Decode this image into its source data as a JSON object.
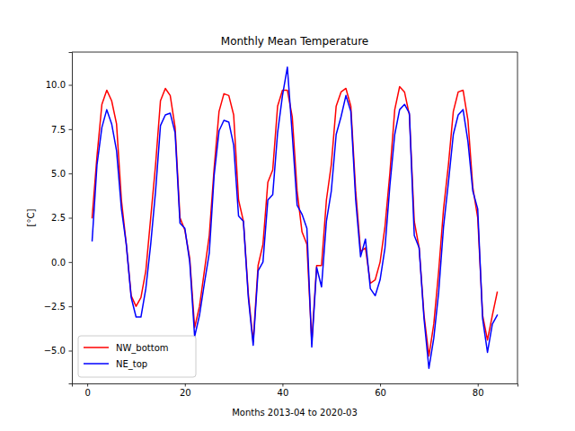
{
  "chart_data": {
    "type": "line",
    "title": "Monthly Mean Temperature",
    "x_label": "Months 2013-04 to 2020-03",
    "y_label": "[°C]",
    "x": [
      1,
      2,
      3,
      4,
      5,
      6,
      7,
      8,
      9,
      10,
      11,
      12,
      13,
      14,
      15,
      16,
      17,
      18,
      19,
      20,
      21,
      22,
      23,
      24,
      25,
      26,
      27,
      28,
      29,
      30,
      31,
      32,
      33,
      34,
      35,
      36,
      37,
      38,
      39,
      40,
      41,
      42,
      43,
      44,
      45,
      46,
      47,
      48,
      49,
      50,
      51,
      52,
      53,
      54,
      55,
      56,
      57,
      58,
      59,
      60,
      61,
      62,
      63,
      64,
      65,
      66,
      67,
      68,
      69,
      70,
      71,
      72,
      73,
      74,
      75,
      76,
      77,
      78,
      79,
      80,
      81,
      82,
      83,
      84
    ],
    "series": [
      {
        "name": "NW_bottom",
        "color": "#ff0000",
        "values": [
          2.5,
          6.0,
          8.9,
          9.7,
          9.1,
          7.8,
          3.5,
          1.0,
          -1.9,
          -2.5,
          -2.0,
          -0.5,
          2.5,
          5.5,
          9.1,
          9.8,
          9.4,
          7.6,
          2.5,
          1.8,
          0.2,
          -3.7,
          -2.5,
          -0.5,
          1.5,
          5.3,
          8.5,
          9.5,
          9.4,
          8.3,
          3.5,
          2.3,
          -1.8,
          -4.5,
          -0.2,
          1.0,
          4.5,
          5.2,
          8.8,
          9.7,
          9.7,
          8.2,
          4.0,
          1.7,
          1.0,
          -4.5,
          -0.2,
          -0.2,
          3.5,
          5.5,
          8.8,
          9.6,
          9.8,
          8.8,
          4.0,
          0.6,
          0.8,
          -1.2,
          -1.0,
          0.0,
          2.0,
          5.0,
          8.6,
          9.9,
          9.6,
          8.3,
          2.3,
          0.8,
          -3.0,
          -5.3,
          -3.5,
          -0.5,
          3.0,
          5.5,
          8.5,
          9.6,
          9.7,
          8.0,
          4.2,
          2.5,
          -3.0,
          -4.4,
          -3.0,
          -1.7
        ]
      },
      {
        "name": "NE_top",
        "color": "#0000ff",
        "values": [
          1.2,
          5.5,
          7.6,
          8.6,
          7.8,
          6.3,
          3.0,
          1.0,
          -2.0,
          -3.1,
          -3.1,
          -1.5,
          1.0,
          4.0,
          7.7,
          8.3,
          8.4,
          7.3,
          2.2,
          1.9,
          0.0,
          -4.2,
          -3.0,
          -1.2,
          0.5,
          4.9,
          7.4,
          8.0,
          7.9,
          6.6,
          2.6,
          2.3,
          -2.0,
          -4.7,
          -0.5,
          0.0,
          3.5,
          3.8,
          7.3,
          9.4,
          11.0,
          7.2,
          3.2,
          2.7,
          1.9,
          -4.8,
          -0.3,
          -1.4,
          2.3,
          4.0,
          7.2,
          8.2,
          9.4,
          8.5,
          3.5,
          0.3,
          1.3,
          -1.5,
          -1.9,
          -1.0,
          0.8,
          4.3,
          7.2,
          8.6,
          8.9,
          8.4,
          1.5,
          0.8,
          -3.2,
          -6.0,
          -4.3,
          -1.7,
          2.0,
          4.5,
          7.2,
          8.3,
          8.6,
          6.8,
          4.0,
          3.0,
          -3.2,
          -5.1,
          -3.5,
          -3.0
        ]
      }
    ],
    "xlim": [
      -3.15,
      88.15
    ],
    "xticks": [
      0,
      20,
      40,
      60,
      80
    ],
    "ylim": [
      -6.85,
      11.85
    ],
    "yticks": [
      {
        "value": -5,
        "label": "−5.0"
      },
      {
        "value": -2.5,
        "label": "−2.5"
      },
      {
        "value": 0,
        "label": "0.0"
      },
      {
        "value": 2.5,
        "label": "2.5"
      },
      {
        "value": 5,
        "label": "5.0"
      },
      {
        "value": 7.5,
        "label": "7.5"
      },
      {
        "value": 10,
        "label": "10.0"
      }
    ],
    "legend": "lower left",
    "grid": false
  }
}
